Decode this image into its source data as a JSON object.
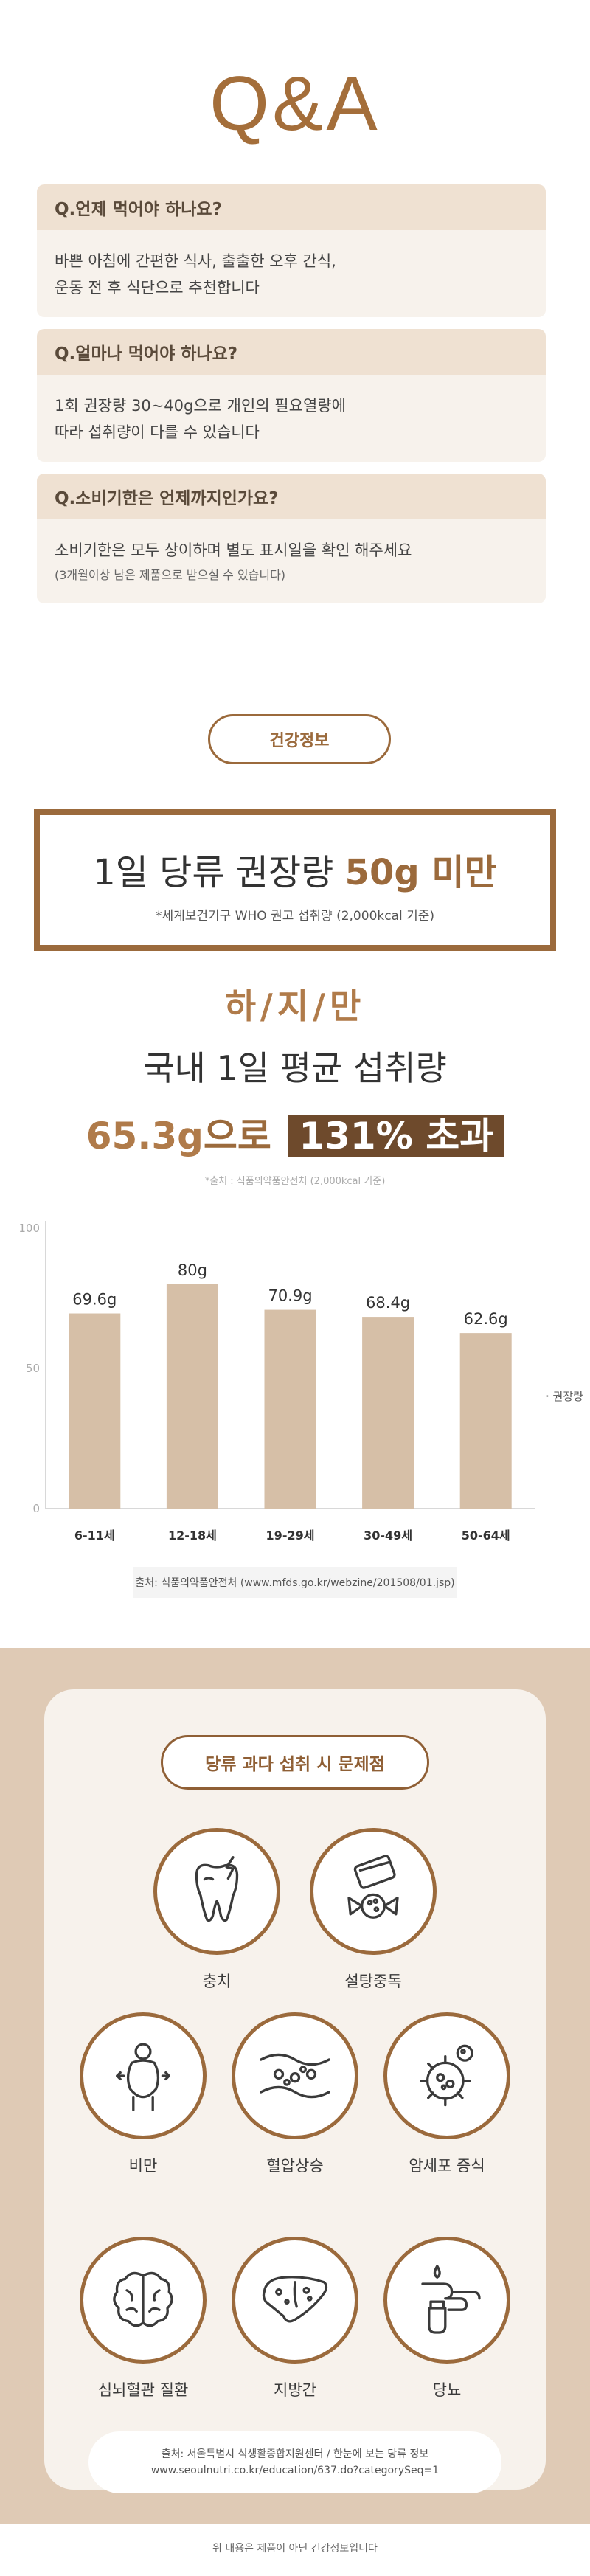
{
  "qa": {
    "title": "Q&A",
    "items": [
      {
        "q": "Q.언제 먹어야 하나요?",
        "a1": "바쁜 아침에 간편한 식사, 출출한 오후 간식,",
        "a2": "운동 전 후 식단으로 추천합니다"
      },
      {
        "q": "Q.얼마나 먹어야 하나요?",
        "a1": "1회 권장량 30~40g으로 개인의 필요열량에",
        "a2": "따라 섭취량이 다를 수 있습니다"
      },
      {
        "q": "Q.소비기한은 언제까지인가요?",
        "a1": "소비기한은 모두 상이하며 별도 표시일을 확인 해주세요",
        "a2": "(3개월이상 남은 제품으로 받으실 수 있습니다)"
      }
    ]
  },
  "health": {
    "pill": "건강정보",
    "sugar_main_pre": "1일 당류 권장량 ",
    "sugar_main_hl": "50g 미만",
    "sugar_sub": "*세계보건기구 WHO 권고 섭취량 (2,000kcal 기준)",
    "but": "하/지/만",
    "avg_line1": "국내 1일 평균 섭취량",
    "avg_amount": "65.3g",
    "avg_mid": "으로 ",
    "avg_box": "131% 초과",
    "source1": "*출처 : 식품의약품안전처 (2,000kcal 기준)"
  },
  "chart_data": {
    "type": "bar",
    "categories": [
      "6-11세",
      "12-18세",
      "19-29세",
      "30-49세",
      "50-64세"
    ],
    "values": [
      69.6,
      80,
      70.9,
      68.4,
      62.6
    ],
    "data_labels": [
      "69.6g",
      "80g",
      "70.9g",
      "68.4g",
      "62.6g"
    ],
    "yticks": [
      0,
      50,
      100
    ],
    "ylim": [
      0,
      100
    ],
    "legend": "권장량",
    "legend_position": "right",
    "bar_color": "#d6bfa7",
    "grid": false
  },
  "source2": "출처: 식품의약품안전처 (www.mfds.go.kr/webzine/201508/01.jsp)",
  "problems": {
    "pill": "당류 과다 섭취 시 문제점",
    "items": [
      {
        "label": "충치",
        "icon": "tooth-icon"
      },
      {
        "label": "설탕중독",
        "icon": "candy-icon"
      },
      {
        "label": "비만",
        "icon": "obesity-icon"
      },
      {
        "label": "혈압상승",
        "icon": "blood-vessel-icon"
      },
      {
        "label": "암세포 증식",
        "icon": "cancer-cell-icon"
      },
      {
        "label": "심뇌혈관 질환",
        "icon": "brain-icon"
      },
      {
        "label": "지방간",
        "icon": "liver-icon"
      },
      {
        "label": "당뇨",
        "icon": "blood-test-icon"
      }
    ],
    "source_line1": "출처: 서울특별시 식생활종합지원센터 / 한눈에 보는 당류 정보",
    "source_line2": "www.seoulnutri.co.kr/education/637.do?categorySeq=1"
  },
  "footer": "위 내용은 제품이 아닌 건강정보입니다",
  "colors": {
    "brown": "#9b6a3c",
    "beige": "#efe1d2",
    "bar": "#d6bfa7",
    "section_bg": "#dfcab5"
  }
}
